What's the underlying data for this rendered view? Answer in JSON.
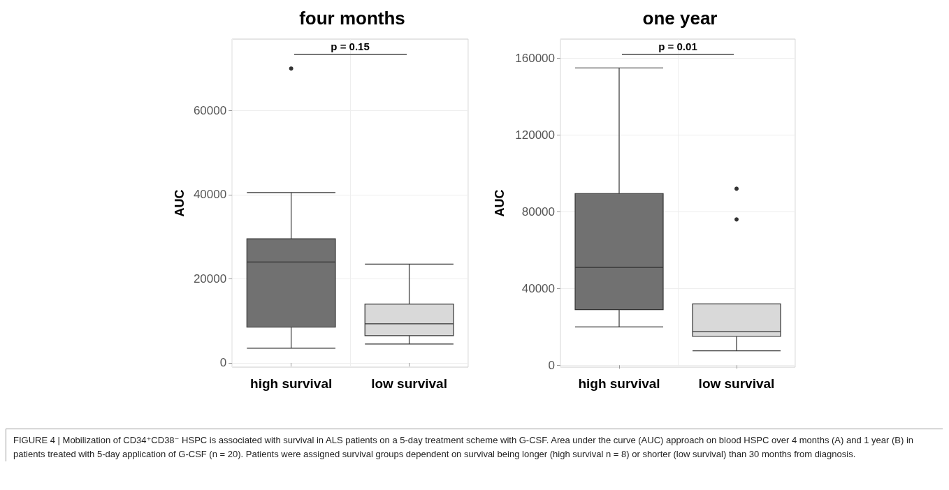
{
  "chart_data": [
    {
      "type": "box",
      "title": "four months",
      "ylabel": "AUC",
      "categories": [
        "high survival",
        "low survival"
      ],
      "ylim": [
        -1000,
        77000
      ],
      "yticks": [
        0,
        20000,
        40000,
        60000
      ],
      "grid": true,
      "annotations": [
        "p = 0.15"
      ],
      "series": [
        {
          "colors": [
            "#717171",
            "#d9d9d9"
          ],
          "boxes": [
            {
              "low": 3500,
              "q1": 8500,
              "median": 24000,
              "q3": 29500,
              "high": 40500,
              "outliers": [
                70000
              ]
            },
            {
              "low": 4500,
              "q1": 6500,
              "median": 9300,
              "q3": 14000,
              "high": 23500
            }
          ]
        }
      ]
    },
    {
      "type": "box",
      "title": "one year",
      "ylabel": "AUC",
      "categories": [
        "high survival",
        "low survival"
      ],
      "ylim": [
        -1000,
        170000
      ],
      "yticks": [
        0,
        40000,
        80000,
        120000,
        160000
      ],
      "grid": true,
      "annotations": [
        "p = 0.01",
        "FIGURE 4 | Mobilization of CD34⁺CD38⁻ HSPC is associated with survival in ALS patients on a 5-day treatment scheme with G-CSF. Area under the curve (AUC) approach on blood HSPC over 4 months (A) and 1 year (B) in patients treated with 5-day application of G-CSF (n = 20). Patients were assigned survival groups dependent on survival being longer (high survival n = 8) or shorter (low survival) than 30 months from diagnosis."
      ],
      "series": [
        {
          "colors": [
            "#717171",
            "#d9d9d9"
          ],
          "boxes": [
            {
              "low": 20000,
              "q1": 29000,
              "median": 51000,
              "q3": 89500,
              "high": 155000
            },
            {
              "low": 7500,
              "q1": 15000,
              "median": 17500,
              "q3": 32000,
              "high": 32000,
              "outliers": [
                92000,
                76000
              ]
            }
          ]
        }
      ]
    }
  ]
}
